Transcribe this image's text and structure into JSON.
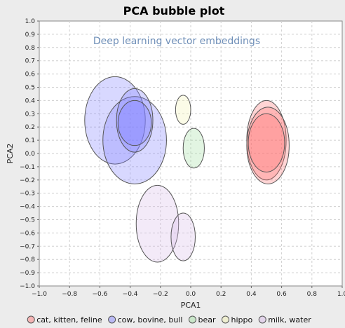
{
  "chart_data": {
    "type": "bubble",
    "title": "PCA bubble plot",
    "xlabel": "PCA1",
    "ylabel": "PCA2",
    "annotation": "Deep learning vector embeddings",
    "xlim": [
      -1.0,
      1.0
    ],
    "ylim": [
      -1.0,
      1.0
    ],
    "xticks": [
      -1.0,
      -0.8,
      -0.6,
      -0.4,
      -0.2,
      0.0,
      0.2,
      0.4,
      0.6,
      0.8,
      1.0
    ],
    "xtick_labels": [
      "−1.0",
      "−0.8",
      "−0.6",
      "−0.4",
      "−0.2",
      "0.0",
      "0.2",
      "0.4",
      "0.6",
      "0.8",
      "1.0"
    ],
    "yticks": [
      1.0,
      0.9,
      0.8,
      0.7,
      0.6,
      0.5,
      0.4,
      0.3,
      0.2,
      0.1,
      0.0,
      -0.1,
      -0.2,
      -0.3,
      -0.4,
      -0.5,
      -0.6,
      -0.7,
      -0.8,
      -0.9,
      -1.0
    ],
    "ytick_labels": [
      "1.0",
      "0.9",
      "0.8",
      "0.7",
      "0.6",
      "0.5",
      "0.4",
      "0.3",
      "0.2",
      "0.1",
      "0.0",
      "−0.1",
      "−0.2",
      "−0.3",
      "−0.4",
      "−0.5",
      "−0.6",
      "−0.7",
      "−0.8",
      "−0.9",
      "−1.0"
    ],
    "grid": true,
    "legend_position": "bottom",
    "series": [
      {
        "name": "cat, kitten, feline",
        "color": "#ff7070",
        "points": [
          {
            "x": 0.5,
            "y": 0.1,
            "rx": 0.13,
            "ry": 0.3
          },
          {
            "x": 0.51,
            "y": 0.06,
            "rx": 0.14,
            "ry": 0.29
          },
          {
            "x": 0.5,
            "y": 0.08,
            "rx": 0.12,
            "ry": 0.22
          }
        ]
      },
      {
        "name": "cow, bovine, bull",
        "color": "#7f7fff",
        "points": [
          {
            "x": -0.5,
            "y": 0.25,
            "rx": 0.2,
            "ry": 0.33
          },
          {
            "x": -0.37,
            "y": 0.1,
            "rx": 0.21,
            "ry": 0.33
          },
          {
            "x": -0.37,
            "y": 0.25,
            "rx": 0.12,
            "ry": 0.24
          },
          {
            "x": -0.37,
            "y": 0.23,
            "rx": 0.11,
            "ry": 0.17
          }
        ]
      },
      {
        "name": "bear",
        "color": "#9fdf9f",
        "points": [
          {
            "x": 0.02,
            "y": 0.04,
            "rx": 0.07,
            "ry": 0.15
          }
        ]
      },
      {
        "name": "hippo",
        "color": "#f2f2b0",
        "points": [
          {
            "x": -0.05,
            "y": 0.33,
            "rx": 0.05,
            "ry": 0.11
          }
        ]
      },
      {
        "name": "milk, water",
        "color": "#d8b8e8",
        "points": [
          {
            "x": -0.22,
            "y": -0.53,
            "rx": 0.14,
            "ry": 0.29
          },
          {
            "x": -0.05,
            "y": -0.63,
            "rx": 0.08,
            "ry": 0.18
          }
        ]
      }
    ]
  }
}
